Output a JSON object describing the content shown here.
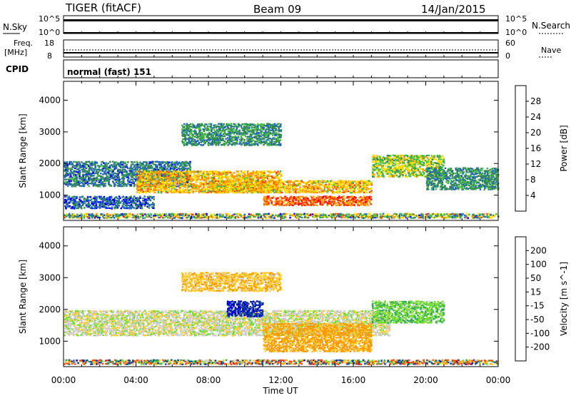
{
  "header": {
    "radar": "TIGER (fitACF)",
    "beam": "Beam 09",
    "date": "14/Jan/2015"
  },
  "strips": {
    "nsky_label": "N.Sky",
    "nsearch_label": "N.Search",
    "log_top": "10^5",
    "log_bottom": "10^0",
    "freq_label": "Freq.",
    "freq_unit": "[MHz]",
    "freq_ticks": [
      "18",
      "8"
    ],
    "nave_label": "Nave",
    "nave_ticks": [
      "60",
      "0"
    ],
    "cpid_label": "CPID",
    "cpid_text": "normal (fast) 151"
  },
  "colors": {
    "power": [
      "#0000ff",
      "#2266bb",
      "#338855",
      "#44bb44",
      "#ffdd00",
      "#ff9900",
      "#ff4400",
      "#ff0000"
    ],
    "velocity": [
      "#ff0000",
      "#ff4400",
      "#ff9900",
      "#ffcc33",
      "#cccccc",
      "#cccccc",
      "#77dd33",
      "#33aa55",
      "#114499",
      "#0000cc"
    ]
  },
  "chart_data": [
    {
      "type": "heatmap",
      "name": "power-panel",
      "title": "",
      "xlabel": "",
      "ylabel": "Slant Range [km]",
      "xlim": [
        "00:00",
        "00:00"
      ],
      "ylim": [
        200,
        4600
      ],
      "x_tick_labels": [
        "00:00",
        "04:00",
        "08:00",
        "12:00",
        "16:00",
        "20:00",
        "00:00"
      ],
      "y_tick_labels": [
        "1000",
        "2000",
        "3000",
        "4000"
      ],
      "colorbar": {
        "label": "Power [dB]",
        "ticks": [
          "4",
          "8",
          "12",
          "16",
          "20",
          "24",
          "28"
        ],
        "range": [
          0,
          30
        ]
      },
      "bands": [
        {
          "t": [
            0,
            24
          ],
          "r": [
            300,
            450
          ],
          "level": "low-mixed"
        },
        {
          "t": [
            0,
            7
          ],
          "r": [
            1300,
            2100
          ],
          "level": 8
        },
        {
          "t": [
            0,
            5
          ],
          "r": [
            600,
            1000
          ],
          "level": 6
        },
        {
          "t": [
            4,
            12
          ],
          "r": [
            1100,
            1800
          ],
          "level": 20
        },
        {
          "t": [
            8,
            17
          ],
          "r": [
            1100,
            1500
          ],
          "level": 20
        },
        {
          "t": [
            6.5,
            12
          ],
          "r": [
            2600,
            3300
          ],
          "level": 10
        },
        {
          "t": [
            11,
            17
          ],
          "r": [
            700,
            1000
          ],
          "level": 25
        },
        {
          "t": [
            17,
            21
          ],
          "r": [
            1600,
            2300
          ],
          "level": 16
        },
        {
          "t": [
            20,
            24
          ],
          "r": [
            1200,
            1900
          ],
          "level": 10
        }
      ]
    },
    {
      "type": "heatmap",
      "name": "velocity-panel",
      "title": "",
      "xlabel": "Time UT",
      "ylabel": "Slant Range [km]",
      "xlim": [
        "00:00",
        "00:00"
      ],
      "ylim": [
        200,
        4600
      ],
      "x_tick_labels": [
        "00:00",
        "04:00",
        "08:00",
        "12:00",
        "16:00",
        "20:00",
        "00:00"
      ],
      "y_tick_labels": [
        "1000",
        "2000",
        "3000",
        "4000"
      ],
      "colorbar": {
        "label": "Velocity [m s^-1]",
        "ticks": [
          "200",
          "100",
          "50",
          "15",
          "-15",
          "-50",
          "-100",
          "-200"
        ],
        "range": [
          -250,
          250
        ]
      },
      "bands": [
        {
          "t": [
            0,
            24
          ],
          "r": [
            300,
            450
          ],
          "level": "mixed"
        },
        {
          "t": [
            0,
            18
          ],
          "r": [
            1200,
            2000
          ],
          "level": 0
        },
        {
          "t": [
            9,
            11
          ],
          "r": [
            1800,
            2300
          ],
          "level": 200
        },
        {
          "t": [
            11,
            17
          ],
          "r": [
            700,
            1600
          ],
          "level": -60
        },
        {
          "t": [
            17,
            21
          ],
          "r": [
            1600,
            2300
          ],
          "level": 40
        },
        {
          "t": [
            6.5,
            12
          ],
          "r": [
            2600,
            3200
          ],
          "level": -40
        }
      ]
    }
  ]
}
